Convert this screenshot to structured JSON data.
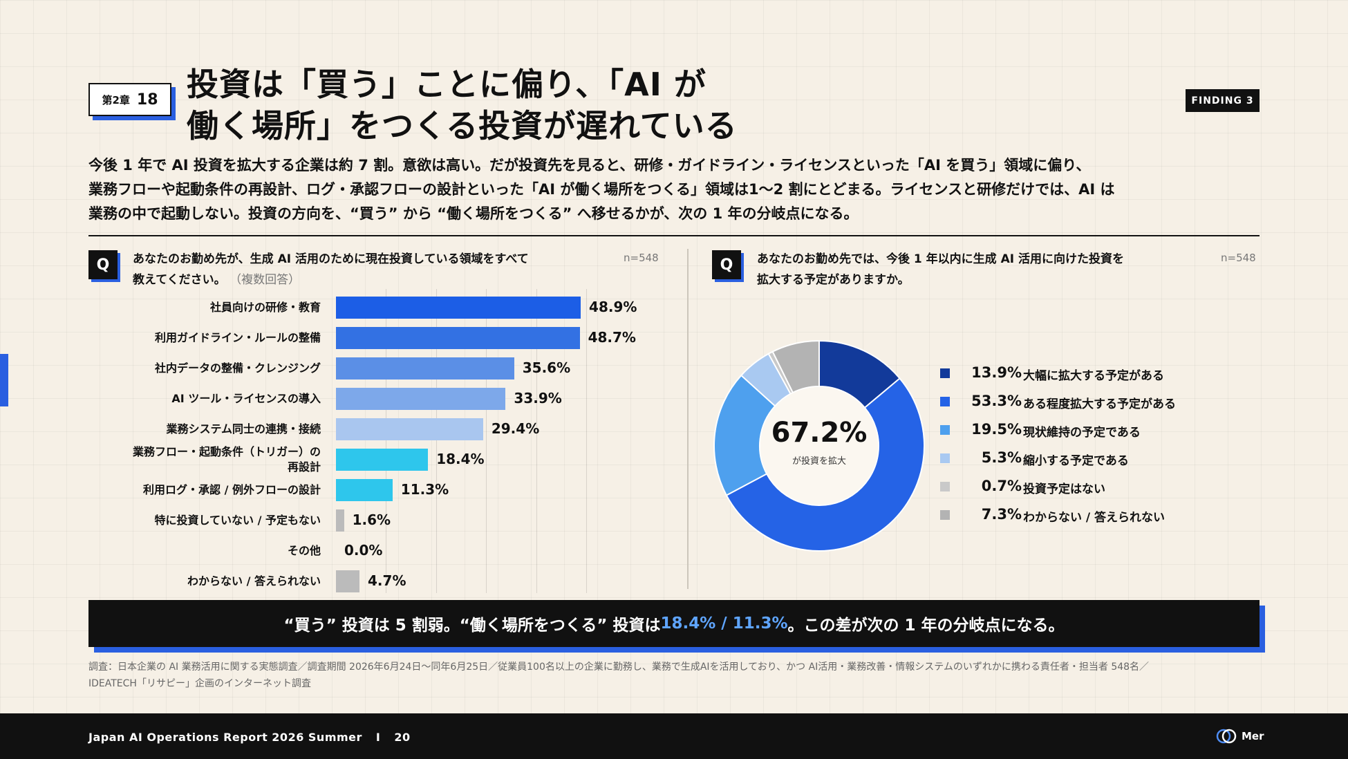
{
  "header": {
    "chapter": "第2章",
    "chapter_num": "18",
    "title_line1": "投資は「買う」ことに偏り、「AI が",
    "title_line2": "働く場所」をつくる投資が遅れている",
    "finding": "FINDING 3"
  },
  "lead": {
    "line1": "今後 1 年で AI 投資を拡大する企業は約 7 割。意欲は高い。だが投資先を見ると、研修・ガイドライン・ライセンスといった「AI を買う」領域に偏り、",
    "line2": "業務フローや起動条件の再設計、ログ・承認フローの設計といった「AI が働く場所をつくる」領域は1〜2 割にとどまる。ライセンスと研修だけでは、AI は",
    "line3": "業務の中で起動しない。投資の方向を、“買う” から “働く場所をつくる” へ移せるかが、次の 1 年の分岐点になる。"
  },
  "left_question": {
    "icon": "Q",
    "line1": "あなたのお勤め先が、生成 AI 活用のために現在投資している領域をすべて",
    "line2": "教えてください。",
    "note": "（複数回答）",
    "n": "n=548"
  },
  "right_question": {
    "icon": "Q",
    "line1": "あなたのお勤め先では、今後 1 年以内に生成 AI 活用に向けた投資を",
    "line2": "拡大する予定がありますか。",
    "n": "n=548"
  },
  "chart_data": [
    {
      "type": "bar",
      "orientation": "horizontal",
      "unit": "%",
      "xlim": [
        0,
        50
      ],
      "categories": [
        "社員向けの研修・教育",
        "利用ガイドライン・ルールの整備",
        "社内データの整備・クレンジング",
        "AI ツール・ライセンスの導入",
        "業務システム同士の連携・接続",
        "業務フロー・起動条件（トリガー）の\n再設計",
        "利用ログ・承認 / 例外フローの設計",
        "特に投資していない / 予定もない",
        "その他",
        "わからない / 答えられない"
      ],
      "values": [
        48.9,
        48.7,
        35.6,
        33.9,
        29.4,
        18.4,
        11.3,
        1.6,
        0.0,
        4.7
      ],
      "value_labels": [
        "48.9%",
        "48.7%",
        "35.6%",
        "33.9%",
        "29.4%",
        "18.4%",
        "11.3%",
        "1.6%",
        "0.0%",
        "4.7%"
      ],
      "colors": [
        "#1c5ee6",
        "#3371e3",
        "#5b8fe6",
        "#7da8ea",
        "#a9c6ef",
        "#2ec6ec",
        "#2ec6ec",
        "#bbbbbb",
        "#bbbbbb",
        "#bbbbbb"
      ]
    },
    {
      "type": "pie",
      "donut": true,
      "center_value": "67.2%",
      "center_label": "が投資を拡大",
      "slices": [
        {
          "label": "大幅に拡大する予定がある",
          "value": 13.9,
          "value_label": "13.9%",
          "color": "#123a9a"
        },
        {
          "label": "ある程度拡大する予定がある",
          "value": 53.3,
          "value_label": "53.3%",
          "color": "#2563e6"
        },
        {
          "label": "現状維持の予定である",
          "value": 19.5,
          "value_label": "19.5%",
          "color": "#4ea0ee"
        },
        {
          "label": "縮小する予定である",
          "value": 5.3,
          "value_label": "5.3%",
          "color": "#a9c9f1"
        },
        {
          "label": "投資予定はない",
          "value": 0.7,
          "value_label": "0.7%",
          "color": "#c9c9c9"
        },
        {
          "label": "わからない / 答えられない",
          "value": 7.3,
          "value_label": "7.3%",
          "color": "#b3b3b3"
        }
      ],
      "legend": "right"
    }
  ],
  "callout": {
    "pre": "“買う” 投資は 5 割弱。“働く場所をつくる” 投資は ",
    "highlight": "18.4% / 11.3%",
    "post": "。この差が次の 1 年の分岐点になる。"
  },
  "source": {
    "line1": "調査：日本企業の AI 業務活用に関する実態調査／調査期間 2026年6月24日〜同年6月25日／従業員100名以上の企業に勤務し、業務で生成AIを活用しており、かつ AI活用・業務改善・情報システムのいずれかに携わる責任者・担当者 548名／",
    "line2": "IDEATECH「リサピー」企画のインターネット調査"
  },
  "footer": {
    "report": "Japan AI Operations Report 2026 Summer",
    "sep": "I",
    "page": "20",
    "logo": "Mer"
  }
}
